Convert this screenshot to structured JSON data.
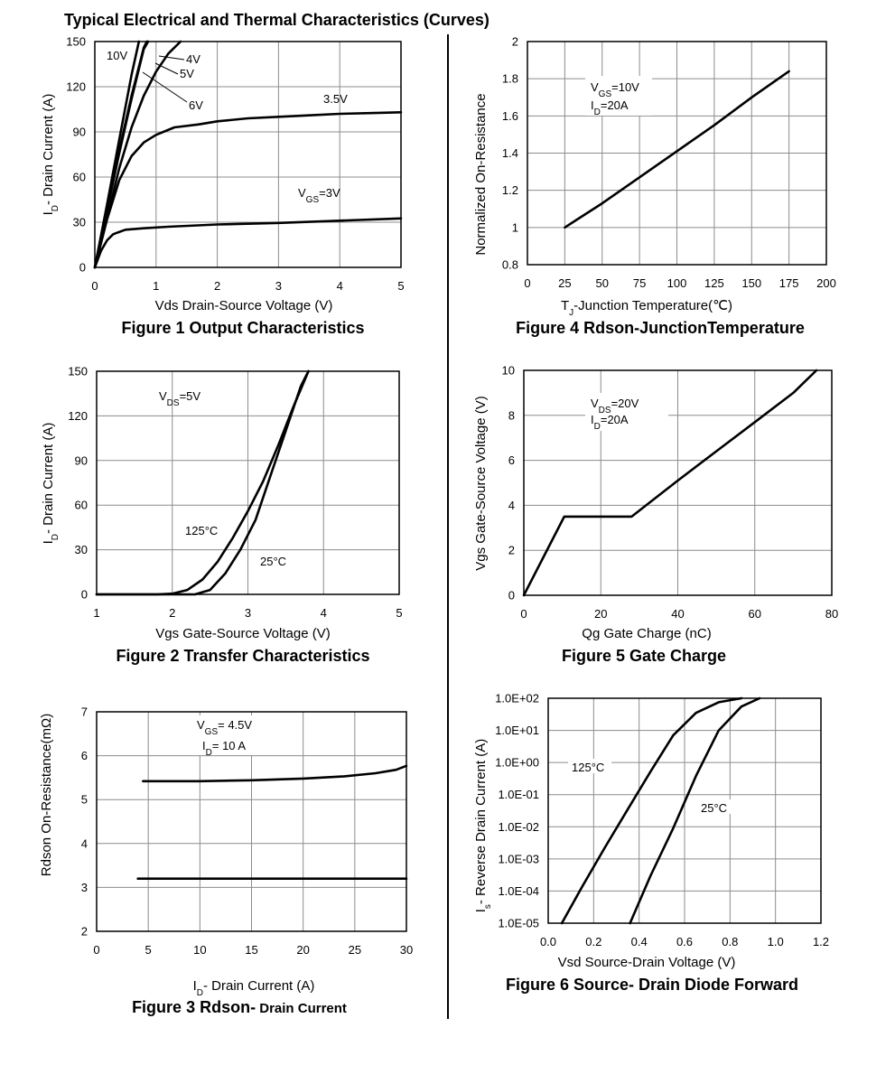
{
  "page": {
    "title": "Typical Electrical and Thermal Characteristics (Curves)"
  },
  "chart_data": [
    {
      "id": "fig1",
      "type": "line",
      "title": "Figure 1 Output Characteristics",
      "xlabel": "Vds Drain-Source Voltage (V)",
      "ylabel": "ID- Drain Current (A)",
      "xlim": [
        0,
        5
      ],
      "ylim": [
        0,
        150
      ],
      "xticks": [
        "0",
        "1",
        "2",
        "3",
        "4",
        "5"
      ],
      "yticks": [
        "0",
        "30",
        "60",
        "90",
        "120",
        "150"
      ],
      "grid": true,
      "series": [
        {
          "name": "10V",
          "x": [
            0,
            0.2,
            0.4,
            0.6,
            0.72
          ],
          "y": [
            0,
            42,
            85,
            128,
            150
          ]
        },
        {
          "name": "6V",
          "x": [
            0,
            0.2,
            0.4,
            0.6,
            0.8,
            0.87
          ],
          "y": [
            0,
            38,
            76,
            112,
            145,
            150
          ]
        },
        {
          "name": "5V",
          "x": [
            0,
            0.2,
            0.4,
            0.6,
            0.8,
            0.85
          ],
          "y": [
            0,
            39,
            78,
            114,
            146,
            150
          ]
        },
        {
          "name": "4V",
          "x": [
            0,
            0.2,
            0.4,
            0.6,
            0.8,
            1.0,
            1.2,
            1.4
          ],
          "y": [
            0,
            33,
            66,
            93,
            114,
            130,
            142,
            150
          ]
        },
        {
          "name": "3.5V",
          "x": [
            0,
            0.2,
            0.4,
            0.6,
            0.8,
            1.0,
            1.3,
            1.7,
            2.0,
            2.5,
            3.0,
            3.5,
            4.0,
            4.5,
            5.0
          ],
          "y": [
            0,
            32,
            58,
            74,
            83,
            88,
            93,
            95,
            97,
            99,
            100,
            101,
            102,
            102.5,
            103
          ]
        },
        {
          "name": "VGS=3V",
          "x": [
            0,
            0.1,
            0.2,
            0.3,
            0.5,
            0.8,
            1.2,
            2.0,
            3.0,
            4.0,
            5.0
          ],
          "y": [
            0,
            11,
            18,
            22,
            25,
            26,
            27,
            28.5,
            29.5,
            31,
            32.5
          ]
        }
      ]
    },
    {
      "id": "fig4",
      "type": "line",
      "title": "Figure 4 Rdson-JunctionTemperature",
      "xlabel": "TJ-Junction Temperature(℃)",
      "ylabel": "Normalized On-Resistance",
      "xlim": [
        0,
        200
      ],
      "ylim": [
        0.8,
        2
      ],
      "xticks": [
        "0",
        "25",
        "50",
        "75",
        "100",
        "125",
        "150",
        "175",
        "200"
      ],
      "yticks": [
        "0.8",
        "1",
        "1.2",
        "1.4",
        "1.6",
        "1.8",
        "2"
      ],
      "grid": true,
      "annotation": [
        "VGS=10V",
        "ID=20A"
      ],
      "series": [
        {
          "x": [
            25,
            50,
            75,
            100,
            125,
            150,
            175
          ],
          "y": [
            1.0,
            1.13,
            1.27,
            1.41,
            1.55,
            1.7,
            1.84
          ]
        }
      ]
    },
    {
      "id": "fig2",
      "type": "line",
      "title": "Figure 2 Transfer Characteristics",
      "xlabel": "Vgs Gate-Source Voltage (V)",
      "ylabel": "ID- Drain Current (A)",
      "xlim": [
        1,
        5
      ],
      "ylim": [
        0,
        150
      ],
      "xticks": [
        "1",
        "2",
        "3",
        "4",
        "5"
      ],
      "yticks": [
        "0",
        "30",
        "60",
        "90",
        "120",
        "150"
      ],
      "grid": true,
      "annotation": [
        "VDS=5V"
      ],
      "series": [
        {
          "name": "125°C",
          "x": [
            1.0,
            1.8,
            2.0,
            2.2,
            2.4,
            2.6,
            2.8,
            3.0,
            3.2,
            3.4,
            3.6,
            3.8
          ],
          "y": [
            0,
            0,
            0.5,
            3,
            10,
            22,
            38,
            56,
            76,
            100,
            126,
            150
          ]
        },
        {
          "name": "25°C",
          "x": [
            1.0,
            2.3,
            2.5,
            2.7,
            2.9,
            3.1,
            3.3,
            3.5,
            3.7,
            3.8
          ],
          "y": [
            0,
            0,
            3,
            14,
            30,
            50,
            80,
            110,
            140,
            150
          ]
        }
      ]
    },
    {
      "id": "fig5",
      "type": "line",
      "title": "Figure 5 Gate Charge",
      "xlabel": "Qg Gate Charge (nC)",
      "ylabel": "Vgs Gate-Source Voltage (V)",
      "xlim": [
        0,
        80
      ],
      "ylim": [
        0,
        10
      ],
      "xticks": [
        "0",
        "20",
        "40",
        "60",
        "80"
      ],
      "yticks": [
        "0",
        "2",
        "4",
        "6",
        "8",
        "10"
      ],
      "grid": true,
      "annotation": [
        "VDS=20V",
        "ID=20A"
      ],
      "series": [
        {
          "x": [
            0,
            10.5,
            28,
            40,
            50,
            60,
            70,
            76
          ],
          "y": [
            0,
            3.5,
            3.5,
            5.1,
            6.4,
            7.7,
            9.0,
            10
          ]
        }
      ]
    },
    {
      "id": "fig3",
      "type": "line",
      "title": "Figure 3 Rdson-",
      "title_suffix": "Drain Current",
      "xlabel": "ID- Drain Current (A)",
      "ylabel": "Rdson On-Resistance(mΩ)",
      "xlim": [
        0,
        30
      ],
      "ylim": [
        2,
        7
      ],
      "xticks": [
        "0",
        "5",
        "10",
        "15",
        "20",
        "25",
        "30"
      ],
      "yticks": [
        "2",
        "3",
        "4",
        "5",
        "6",
        "7"
      ],
      "grid": true,
      "annotation": [
        "VGS= 4.5V",
        "ID= 10 A"
      ],
      "series": [
        {
          "x": [
            4.5,
            10,
            15,
            20,
            24,
            27,
            29,
            30
          ],
          "y": [
            5.42,
            5.42,
            5.44,
            5.48,
            5.53,
            5.6,
            5.68,
            5.77
          ]
        },
        {
          "x": [
            4,
            10,
            15,
            20,
            25,
            30
          ],
          "y": [
            3.2,
            3.2,
            3.2,
            3.2,
            3.2,
            3.2
          ]
        }
      ]
    },
    {
      "id": "fig6",
      "type": "line",
      "title": "Figure 6 Source- Drain Diode Forward",
      "xlabel": "Vsd Source-Drain Voltage (V)",
      "ylabel": "Is- Reverse Drain Current (A)",
      "xlim": [
        0,
        1.2
      ],
      "ylim": [
        1e-05,
        100
      ],
      "yscale": "log",
      "xticks": [
        "0.0",
        "0.2",
        "0.4",
        "0.6",
        "0.8",
        "1.0",
        "1.2"
      ],
      "yticks": [
        "1.0E-05",
        "1.0E-04",
        "1.0E-03",
        "1.0E-02",
        "1.0E-01",
        "1.0E+00",
        "1.0E+01",
        "1.0E+02"
      ],
      "grid": true,
      "series": [
        {
          "name": "125°C",
          "x": [
            0.06,
            0.15,
            0.25,
            0.35,
            0.45,
            0.55,
            0.65,
            0.75,
            0.85
          ],
          "y": [
            1e-05,
            0.00014,
            0.0023,
            0.035,
            0.52,
            7,
            35,
            75,
            100
          ]
        },
        {
          "name": "25°C",
          "x": [
            0.36,
            0.45,
            0.55,
            0.65,
            0.75,
            0.85,
            0.93
          ],
          "y": [
            1e-05,
            0.0003,
            0.009,
            0.38,
            10,
            55,
            100
          ]
        }
      ]
    }
  ]
}
